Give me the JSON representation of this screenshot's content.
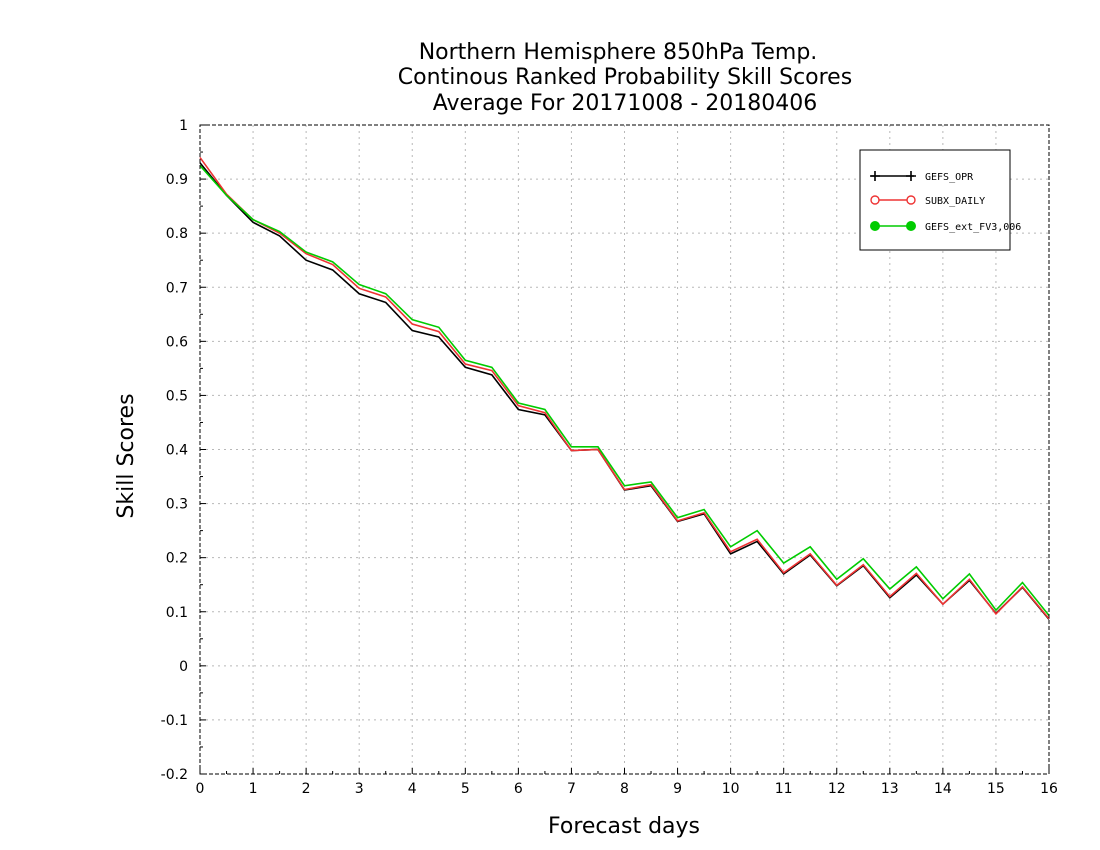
{
  "chart_data": {
    "type": "line",
    "title_lines": [
      "Northern Hemisphere 850hPa Temp.",
      "Continous Ranked Probability Skill Scores",
      "Average For 20171008 - 20180406"
    ],
    "xlabel": "Forecast days",
    "ylabel": "Skill Scores",
    "xlim": [
      0,
      16
    ],
    "ylim": [
      -0.2,
      1
    ],
    "x_ticks": [
      "0",
      "1",
      "2",
      "3",
      "4",
      "5",
      "6",
      "7",
      "8",
      "9",
      "10",
      "11",
      "12",
      "13",
      "14",
      "15",
      "16"
    ],
    "y_ticks": [
      "-0.2",
      "-0.1",
      "0",
      "0.1",
      "0.2",
      "0.3",
      "0.4",
      "0.5",
      "0.6",
      "0.7",
      "0.8",
      "0.9",
      "1"
    ],
    "grid": true,
    "legend_position": "top-right",
    "x": [
      0,
      0.5,
      1,
      1.5,
      2,
      2.5,
      3,
      3.5,
      4,
      4.5,
      5,
      5.5,
      6,
      6.5,
      7,
      7.5,
      8,
      8.5,
      9,
      9.5,
      10,
      10.5,
      11,
      11.5,
      12,
      12.5,
      13,
      13.5,
      14,
      14.5,
      15,
      15.5,
      16
    ],
    "series": [
      {
        "name": "GEFS_OPR",
        "color": "#000000",
        "marker": "plus",
        "values": [
          0.93,
          0.87,
          0.82,
          0.795,
          0.75,
          0.732,
          0.688,
          0.672,
          0.62,
          0.608,
          0.552,
          0.538,
          0.474,
          0.464,
          0.398,
          0.4,
          0.325,
          0.333,
          0.267,
          0.281,
          0.207,
          0.23,
          0.17,
          0.205,
          0.148,
          0.185,
          0.126,
          0.168,
          0.114,
          0.158,
          0.097,
          0.145,
          0.086
        ]
      },
      {
        "name": "SUBX_DAILY",
        "color": "#ee3333",
        "marker": "open-circle",
        "values": [
          0.94,
          0.872,
          0.825,
          0.8,
          0.762,
          0.742,
          0.698,
          0.682,
          0.632,
          0.618,
          0.558,
          0.546,
          0.481,
          0.468,
          0.398,
          0.4,
          0.326,
          0.335,
          0.268,
          0.283,
          0.211,
          0.234,
          0.172,
          0.207,
          0.149,
          0.187,
          0.128,
          0.171,
          0.114,
          0.16,
          0.096,
          0.146,
          0.087
        ]
      },
      {
        "name": "GEFS_ext_FV3,006",
        "color": "#00cc00",
        "marker": "filled-circle",
        "values": [
          0.925,
          0.87,
          0.825,
          0.803,
          0.765,
          0.747,
          0.705,
          0.688,
          0.64,
          0.626,
          0.565,
          0.552,
          0.486,
          0.474,
          0.405,
          0.405,
          0.333,
          0.34,
          0.274,
          0.289,
          0.22,
          0.25,
          0.19,
          0.22,
          0.16,
          0.198,
          0.142,
          0.183,
          0.124,
          0.17,
          0.103,
          0.154,
          0.093
        ]
      }
    ]
  }
}
